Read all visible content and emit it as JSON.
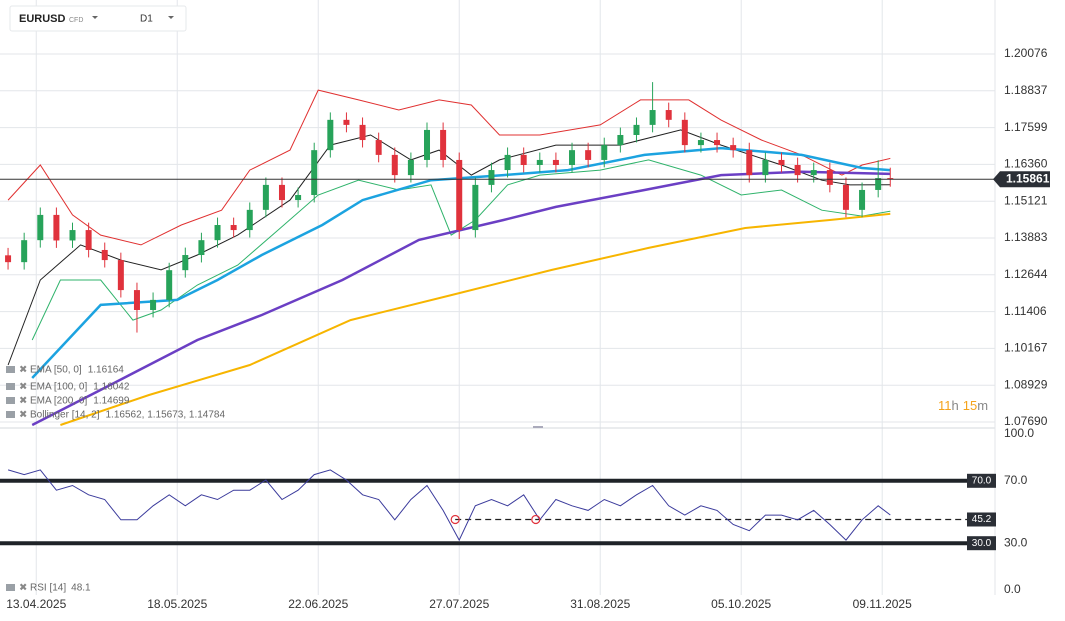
{
  "header": {
    "symbol": "EURUSD",
    "type": "CFD",
    "timeframe": "D1"
  },
  "chart_data": [
    {
      "type": "candlestick",
      "xlim": [
        "04.04.2025",
        "07.12.2025"
      ],
      "xticks": [
        "13.04.2025",
        "18.05.2025",
        "22.06.2025",
        "27.07.2025",
        "31.08.2025",
        "05.10.2025",
        "09.11.2025"
      ],
      "ylim": [
        1.0769,
        1.20076
      ],
      "yticks": [
        {
          "value": 1.0769,
          "label": "1.07690"
        },
        1.08929,
        1.10167,
        1.11406,
        1.12644,
        1.13883,
        1.15121,
        {
          "value": 1.1636,
          "label": "1.16360"
        },
        1.17599,
        1.18837,
        1.20076
      ],
      "grid": true,
      "up_color": "#27a35a",
      "down_color": "#e0323c",
      "x": [
        "06.04.2025",
        "10.04.2025",
        "14.04.2025",
        "18.04.2025",
        "22.04.2025",
        "26.04.2025",
        "30.04.2025",
        "04.05.2025",
        "08.05.2025",
        "12.05.2025",
        "16.05.2025",
        "20.05.2025",
        "24.05.2025",
        "28.05.2025",
        "01.06.2025",
        "05.06.2025",
        "09.06.2025",
        "13.06.2025",
        "17.06.2025",
        "21.06.2025",
        "25.06.2025",
        "29.06.2025",
        "03.07.2025",
        "07.07.2025",
        "11.07.2025",
        "15.07.2025",
        "19.07.2025",
        "23.07.2025",
        "27.07.2025",
        "31.07.2025",
        "04.08.2025",
        "08.08.2025",
        "12.08.2025",
        "16.08.2025",
        "20.08.2025",
        "24.08.2025",
        "28.08.2025",
        "01.09.2025",
        "05.09.2025",
        "09.09.2025",
        "13.09.2025",
        "17.09.2025",
        "21.09.2025",
        "25.09.2025",
        "29.09.2025",
        "03.10.2025",
        "07.10.2025",
        "11.10.2025",
        "15.10.2025",
        "19.10.2025",
        "23.10.2025",
        "27.10.2025",
        "31.10.2025",
        "04.11.2025",
        "08.11.2025",
        "11.11.2025"
      ],
      "open": [
        1.133,
        1.1307,
        1.1381,
        1.1466,
        1.138,
        1.1415,
        1.1348,
        1.1314,
        1.1213,
        1.1146,
        1.118,
        1.128,
        1.1331,
        1.1381,
        1.1432,
        1.1415,
        1.1483,
        1.1567,
        1.1516,
        1.1533,
        1.1684,
        1.1786,
        1.1769,
        1.1718,
        1.1668,
        1.16,
        1.1651,
        1.1752,
        1.1651,
        1.1415,
        1.1567,
        1.1617,
        1.1668,
        1.1634,
        1.1651,
        1.1634,
        1.1684,
        1.1651,
        1.1701,
        1.1735,
        1.1769,
        1.1819,
        1.1786,
        1.1701,
        1.1718,
        1.1701,
        1.1684,
        1.16,
        1.1651,
        1.1634,
        1.16,
        1.1617,
        1.1567,
        1.1483,
        1.155,
        1.159
      ],
      "high": [
        1.1355,
        1.1406,
        1.1491,
        1.1491,
        1.144,
        1.144,
        1.1373,
        1.1339,
        1.1238,
        1.1205,
        1.1305,
        1.1356,
        1.1406,
        1.1457,
        1.1457,
        1.1508,
        1.1592,
        1.1592,
        1.1558,
        1.1709,
        1.1811,
        1.1811,
        1.1794,
        1.1743,
        1.1693,
        1.1676,
        1.1777,
        1.1777,
        1.1676,
        1.1592,
        1.1642,
        1.1693,
        1.1693,
        1.1676,
        1.1676,
        1.1709,
        1.1709,
        1.1726,
        1.176,
        1.1794,
        1.1913,
        1.1844,
        1.1811,
        1.1743,
        1.1743,
        1.1726,
        1.1709,
        1.1676,
        1.1676,
        1.1659,
        1.1642,
        1.1642,
        1.1592,
        1.1575,
        1.165,
        1.1625
      ],
      "low": [
        1.1282,
        1.1282,
        1.1356,
        1.1355,
        1.1355,
        1.1323,
        1.1289,
        1.1188,
        1.107,
        1.1121,
        1.1155,
        1.1255,
        1.1306,
        1.1356,
        1.139,
        1.139,
        1.1458,
        1.1491,
        1.1491,
        1.1508,
        1.1659,
        1.1744,
        1.1693,
        1.1643,
        1.1575,
        1.1575,
        1.1626,
        1.1626,
        1.1385,
        1.139,
        1.1542,
        1.1592,
        1.1609,
        1.1609,
        1.1609,
        1.1609,
        1.1626,
        1.1626,
        1.1676,
        1.171,
        1.1744,
        1.1761,
        1.1676,
        1.1676,
        1.1676,
        1.1659,
        1.1575,
        1.1575,
        1.1609,
        1.1575,
        1.1575,
        1.1542,
        1.1458,
        1.1458,
        1.1525,
        1.1561
      ],
      "close": [
        1.1307,
        1.1381,
        1.1466,
        1.138,
        1.1415,
        1.1348,
        1.1314,
        1.1213,
        1.1146,
        1.118,
        1.128,
        1.1331,
        1.1381,
        1.1432,
        1.1415,
        1.1483,
        1.1567,
        1.1516,
        1.1533,
        1.1684,
        1.1786,
        1.1769,
        1.1718,
        1.1668,
        1.16,
        1.1651,
        1.1752,
        1.1651,
        1.1415,
        1.1567,
        1.1617,
        1.1668,
        1.1634,
        1.1651,
        1.1634,
        1.1684,
        1.1651,
        1.1701,
        1.1735,
        1.1769,
        1.1819,
        1.1786,
        1.1701,
        1.1718,
        1.1701,
        1.1684,
        1.16,
        1.1651,
        1.1634,
        1.16,
        1.1617,
        1.1567,
        1.1483,
        1.155,
        1.159,
        1.15861
      ],
      "last_price": 1.15861,
      "series": [
        {
          "name": "EMA [50, 0]",
          "legend_value": 1.16164,
          "color": "#1ca3e0",
          "width": 2.5,
          "x": [
            "12.04.2025",
            "29.04.2025",
            "18.05.2025",
            "28.05.2025",
            "08.06.2025",
            "23.06.2025",
            "03.07.2025",
            "20.07.2025",
            "07.08.2025",
            "23.08.2025",
            "11.09.2025",
            "30.09.2025",
            "20.10.2025",
            "04.11.2025",
            "11.11.2025"
          ],
          "values": [
            1.0917,
            1.1163,
            1.118,
            1.1247,
            1.1331,
            1.1432,
            1.1516,
            1.1583,
            1.16,
            1.1617,
            1.1668,
            1.1691,
            1.1668,
            1.1624,
            1.16164
          ]
        },
        {
          "name": "EMA [100, 0]",
          "legend_value": 1.16042,
          "color": "#6b3fc4",
          "width": 2.5,
          "x": [
            "12.04.2025",
            "29.04.2025",
            "23.05.2025",
            "08.06.2025",
            "28.06.2025",
            "17.07.2025",
            "07.08.2025",
            "20.08.2025",
            "11.09.2025",
            "30.09.2025",
            "20.10.2025",
            "11.11.2025"
          ],
          "values": [
            1.0759,
            1.0877,
            1.1045,
            1.1129,
            1.1247,
            1.1382,
            1.1449,
            1.1493,
            1.155,
            1.16,
            1.1611,
            1.16042
          ]
        },
        {
          "name": "EMA [200, 0]",
          "legend_value": 1.14699,
          "color": "#f7b500",
          "width": 2,
          "x": [
            "19.04.2025",
            "11.05.2025",
            "05.06.2025",
            "30.06.2025",
            "25.07.2025",
            "19.08.2025",
            "12.09.2025",
            "06.10.2025",
            "27.10.2025",
            "11.11.2025"
          ],
          "values": [
            1.0759,
            1.086,
            1.0961,
            1.1112,
            1.1196,
            1.1281,
            1.1355,
            1.1422,
            1.1449,
            1.14699
          ]
        }
      ],
      "bollinger": {
        "label": "Bollinger [14, 2]",
        "legend_text": "1.16562,  1.15673,  1.14784",
        "bands": [
          {
            "color": "#e03030",
            "x": [
              "06.04.2025",
              "14.04.2025",
              "22.04.2025",
              "29.04.2025",
              "09.05.2025",
              "19.05.2025",
              "29.05.2025",
              "05.06.2025",
              "15.06.2025",
              "22.06.2025",
              "02.07.2025",
              "12.07.2025",
              "22.07.2025",
              "30.07.2025",
              "06.08.2025",
              "16.08.2025",
              "31.08.2025",
              "10.09.2025",
              "22.09.2025",
              "30.09.2025",
              "10.10.2025",
              "20.10.2025",
              "30.10.2025",
              "04.11.2025",
              "11.11.2025"
            ],
            "values": [
              1.1516,
              1.1634,
              1.1466,
              1.1398,
              1.1365,
              1.1432,
              1.1482,
              1.1617,
              1.1684,
              1.1886,
              1.1853,
              1.1819,
              1.1853,
              1.1836,
              1.1735,
              1.1735,
              1.1769,
              1.1853,
              1.1853,
              1.1785,
              1.1718,
              1.1668,
              1.16,
              1.1634,
              1.16562
            ]
          },
          {
            "color": "#222222",
            "x": [
              "06.04.2025",
              "14.04.2025",
              "24.04.2025",
              "04.05.2025",
              "14.05.2025",
              "23.05.2025",
              "02.06.2025",
              "15.06.2025",
              "25.06.2025",
              "05.07.2025",
              "15.07.2025",
              "22.07.2025",
              "30.07.2025",
              "06.08.2025",
              "20.08.2025",
              "05.09.2025",
              "20.09.2025",
              "30.09.2025",
              "15.10.2025",
              "25.10.2025",
              "01.11.2025",
              "11.11.2025"
            ],
            "values": [
              1.0961,
              1.1247,
              1.1365,
              1.1314,
              1.1281,
              1.1331,
              1.1398,
              1.1516,
              1.1701,
              1.1735,
              1.1651,
              1.1684,
              1.16,
              1.1651,
              1.1701,
              1.1701,
              1.1752,
              1.1701,
              1.1634,
              1.1583,
              1.1567,
              1.15673
            ]
          },
          {
            "color": "#2fb36b",
            "x": [
              "12.04.2025",
              "19.04.2025",
              "29.04.2025",
              "07.05.2025",
              "14.05.2025",
              "23.05.2025",
              "02.06.2025",
              "12.06.2025",
              "22.06.2025",
              "02.07.2025",
              "12.07.2025",
              "20.07.2025",
              "25.07.2025",
              "31.07.2025",
              "08.08.2025",
              "16.08.2025",
              "31.08.2025",
              "12.09.2025",
              "25.09.2025",
              "05.10.2025",
              "15.10.2025",
              "25.10.2025",
              "04.11.2025",
              "11.11.2025"
            ],
            "values": [
              1.1045,
              1.1247,
              1.1247,
              1.1112,
              1.1146,
              1.123,
              1.1297,
              1.1415,
              1.1533,
              1.1583,
              1.155,
              1.1567,
              1.1398,
              1.1449,
              1.1567,
              1.16,
              1.1617,
              1.1651,
              1.16,
              1.1533,
              1.155,
              1.1482,
              1.1462,
              1.14784
            ]
          }
        ]
      },
      "countdown": {
        "hours": "11",
        "h": "h",
        "minutes": "15",
        "m": "m"
      }
    },
    {
      "type": "line",
      "name": "RSI [14]",
      "legend_value": 48.1,
      "color": "#3b3b9c",
      "xlim": [
        "04.04.2025",
        "07.12.2025"
      ],
      "ylim": [
        0,
        100
      ],
      "yticks": [
        {
          "value": 0,
          "label": "0.0"
        },
        {
          "value": 30,
          "label": "30.0"
        },
        {
          "value": 70,
          "label": "70.0"
        },
        {
          "value": 100,
          "label": "100.0"
        }
      ],
      "levels": [
        {
          "value": 70,
          "label": "70.0"
        },
        {
          "value": 30,
          "label": "30.0"
        }
      ],
      "trendline": {
        "value": 45.2,
        "label": "45.2",
        "anchors": [
          "26.07.2025",
          "15.08.2025"
        ]
      },
      "x": [
        "06.04.2025",
        "10.04.2025",
        "14.04.2025",
        "18.04.2025",
        "22.04.2025",
        "26.04.2025",
        "30.04.2025",
        "04.05.2025",
        "08.05.2025",
        "12.05.2025",
        "16.05.2025",
        "20.05.2025",
        "24.05.2025",
        "28.05.2025",
        "01.06.2025",
        "05.06.2025",
        "09.06.2025",
        "13.06.2025",
        "17.06.2025",
        "21.06.2025",
        "25.06.2025",
        "29.06.2025",
        "03.07.2025",
        "07.07.2025",
        "11.07.2025",
        "15.07.2025",
        "19.07.2025",
        "23.07.2025",
        "27.07.2025",
        "31.07.2025",
        "04.08.2025",
        "08.08.2025",
        "12.08.2025",
        "16.08.2025",
        "20.08.2025",
        "24.08.2025",
        "28.08.2025",
        "01.09.2025",
        "05.09.2025",
        "09.09.2025",
        "13.09.2025",
        "17.09.2025",
        "21.09.2025",
        "25.09.2025",
        "29.09.2025",
        "03.10.2025",
        "07.10.2025",
        "11.10.2025",
        "15.10.2025",
        "19.10.2025",
        "23.10.2025",
        "27.10.2025",
        "31.10.2025",
        "04.11.2025",
        "08.11.2025",
        "11.11.2025"
      ],
      "values": [
        77,
        74,
        77,
        64,
        67,
        61,
        58,
        45,
        45,
        54,
        61,
        54,
        61,
        58,
        64,
        64,
        70.5,
        58,
        64,
        74,
        77,
        70.5,
        61,
        58,
        45,
        58,
        67,
        51,
        32,
        54,
        58,
        54,
        61,
        45,
        58,
        54,
        51,
        58,
        54,
        61,
        67,
        54,
        48,
        54,
        51,
        42,
        38,
        48,
        48,
        45,
        51,
        42,
        32,
        45,
        54,
        48.1
      ]
    }
  ]
}
